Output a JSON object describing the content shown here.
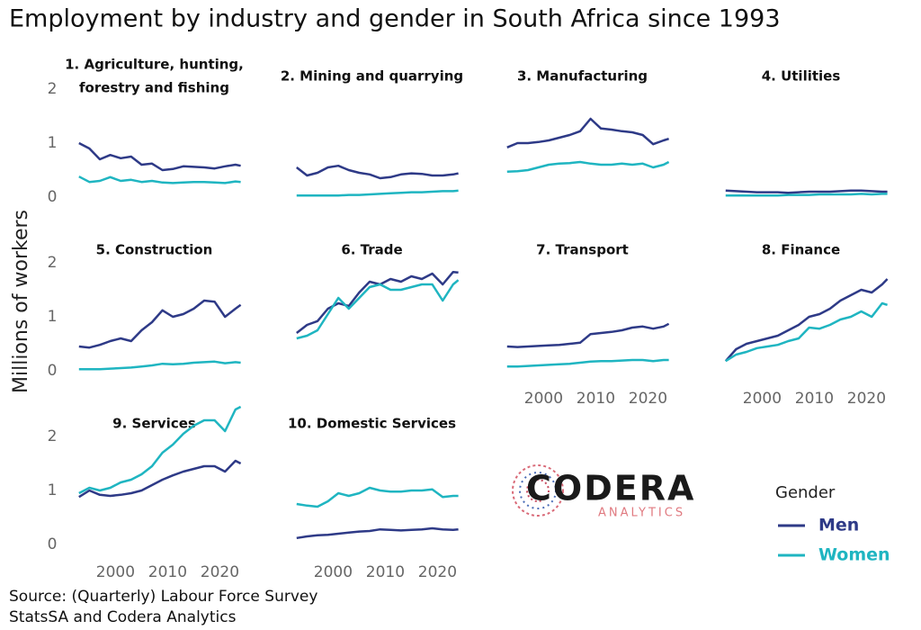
{
  "title": "Employment by industry and gender in South Africa since 1993",
  "y_label": "Millions of workers",
  "source": [
    "Source: (Quarterly) Labour Force Survey",
    "StatsSA and Codera Analytics"
  ],
  "legend": {
    "title": "Gender"
  },
  "logo": {
    "name": "CODERA",
    "sub": "ANALYTICS"
  },
  "chart_data": [
    {
      "type": "line",
      "title": [
        "1. Agriculture, hunting,",
        "forestry and fishing"
      ],
      "xlim": [
        1992,
        2027
      ],
      "ylim": [
        -0.1,
        2.6
      ],
      "yticks": [
        0,
        1,
        2
      ],
      "x": [
        1993,
        1995,
        1997,
        1999,
        2001,
        2003,
        2005,
        2007,
        2009,
        2011,
        2013,
        2015,
        2017,
        2019,
        2021,
        2023,
        2024
      ],
      "series": [
        {
          "name": "Men",
          "color": "#2e3a87",
          "values": [
            1.0,
            0.9,
            0.7,
            0.78,
            0.72,
            0.75,
            0.6,
            0.62,
            0.5,
            0.52,
            0.57,
            0.56,
            0.55,
            0.53,
            0.57,
            0.6,
            0.58
          ]
        },
        {
          "name": "Women",
          "color": "#1fb5c1",
          "values": [
            0.38,
            0.28,
            0.3,
            0.37,
            0.3,
            0.32,
            0.28,
            0.3,
            0.27,
            0.26,
            0.27,
            0.28,
            0.28,
            0.27,
            0.26,
            0.29,
            0.28
          ]
        }
      ]
    },
    {
      "type": "line",
      "title": [
        "2. Mining and quarrying"
      ],
      "xlim": [
        1992,
        2027
      ],
      "ylim": [
        -0.1,
        2.6
      ],
      "x": [
        1993,
        1995,
        1997,
        1999,
        2001,
        2003,
        2005,
        2007,
        2009,
        2011,
        2013,
        2015,
        2017,
        2019,
        2021,
        2023,
        2024
      ],
      "series": [
        {
          "name": "Men",
          "color": "#2e3a87",
          "values": [
            0.55,
            0.4,
            0.45,
            0.55,
            0.58,
            0.5,
            0.45,
            0.42,
            0.35,
            0.37,
            0.42,
            0.44,
            0.43,
            0.4,
            0.4,
            0.42,
            0.44
          ]
        },
        {
          "name": "Women",
          "color": "#1fb5c1",
          "values": [
            0.03,
            0.03,
            0.03,
            0.03,
            0.03,
            0.04,
            0.04,
            0.05,
            0.06,
            0.07,
            0.08,
            0.09,
            0.09,
            0.1,
            0.11,
            0.11,
            0.12
          ]
        }
      ]
    },
    {
      "type": "line",
      "title": [
        "3. Manufacturing"
      ],
      "xlim": [
        1992,
        2027
      ],
      "ylim": [
        -0.1,
        2.6
      ],
      "x": [
        1993,
        1995,
        1997,
        1999,
        2001,
        2003,
        2005,
        2007,
        2009,
        2011,
        2013,
        2015,
        2017,
        2019,
        2021,
        2023,
        2024
      ],
      "series": [
        {
          "name": "Men",
          "color": "#2e3a87",
          "values": [
            0.92,
            1.0,
            1.0,
            1.02,
            1.05,
            1.1,
            1.15,
            1.22,
            1.45,
            1.27,
            1.25,
            1.22,
            1.2,
            1.15,
            0.98,
            1.05,
            1.08
          ]
        },
        {
          "name": "Women",
          "color": "#1fb5c1",
          "values": [
            0.47,
            0.48,
            0.5,
            0.55,
            0.6,
            0.62,
            0.63,
            0.65,
            0.62,
            0.6,
            0.6,
            0.62,
            0.6,
            0.62,
            0.55,
            0.6,
            0.65
          ]
        }
      ]
    },
    {
      "type": "line",
      "title": [
        "4. Utilities"
      ],
      "xlim": [
        1992,
        2027
      ],
      "ylim": [
        -0.1,
        2.6
      ],
      "x": [
        1993,
        1995,
        1997,
        1999,
        2001,
        2003,
        2005,
        2007,
        2009,
        2011,
        2013,
        2015,
        2017,
        2019,
        2021,
        2023,
        2024
      ],
      "series": [
        {
          "name": "Men",
          "color": "#2e3a87",
          "values": [
            0.12,
            0.11,
            0.1,
            0.09,
            0.09,
            0.09,
            0.08,
            0.09,
            0.1,
            0.1,
            0.1,
            0.11,
            0.12,
            0.12,
            0.11,
            0.1,
            0.1
          ]
        },
        {
          "name": "Women",
          "color": "#1fb5c1",
          "values": [
            0.03,
            0.03,
            0.03,
            0.03,
            0.03,
            0.03,
            0.04,
            0.04,
            0.04,
            0.05,
            0.05,
            0.05,
            0.05,
            0.06,
            0.05,
            0.06,
            0.06
          ]
        }
      ]
    },
    {
      "type": "line",
      "title": [
        "5. Construction"
      ],
      "xlim": [
        1992,
        2027
      ],
      "ylim": [
        -0.1,
        2.6
      ],
      "yticks": [
        0,
        1,
        2
      ],
      "x": [
        1993,
        1995,
        1997,
        1999,
        2001,
        2003,
        2005,
        2007,
        2009,
        2011,
        2013,
        2015,
        2017,
        2019,
        2021,
        2023,
        2024
      ],
      "series": [
        {
          "name": "Men",
          "color": "#2e3a87",
          "values": [
            0.45,
            0.43,
            0.48,
            0.55,
            0.6,
            0.55,
            0.75,
            0.9,
            1.12,
            1.0,
            1.05,
            1.15,
            1.3,
            1.28,
            1.0,
            1.15,
            1.22
          ]
        },
        {
          "name": "Women",
          "color": "#1fb5c1",
          "values": [
            0.03,
            0.03,
            0.03,
            0.04,
            0.05,
            0.06,
            0.08,
            0.1,
            0.13,
            0.12,
            0.13,
            0.15,
            0.16,
            0.17,
            0.14,
            0.16,
            0.15
          ]
        }
      ]
    },
    {
      "type": "line",
      "title": [
        "6. Trade"
      ],
      "xlim": [
        1992,
        2027
      ],
      "ylim": [
        -0.1,
        2.6
      ],
      "x": [
        1993,
        1995,
        1997,
        1999,
        2001,
        2003,
        2005,
        2007,
        2009,
        2011,
        2013,
        2015,
        2017,
        2019,
        2021,
        2023,
        2024
      ],
      "series": [
        {
          "name": "Men",
          "color": "#2e3a87",
          "values": [
            0.7,
            0.85,
            0.92,
            1.15,
            1.25,
            1.2,
            1.45,
            1.65,
            1.6,
            1.7,
            1.65,
            1.75,
            1.7,
            1.8,
            1.6,
            1.83,
            1.82
          ]
        },
        {
          "name": "Women",
          "color": "#1fb5c1",
          "values": [
            0.6,
            0.65,
            0.75,
            1.05,
            1.35,
            1.15,
            1.35,
            1.55,
            1.6,
            1.5,
            1.5,
            1.55,
            1.6,
            1.6,
            1.3,
            1.6,
            1.68
          ]
        }
      ]
    },
    {
      "type": "line",
      "title": [
        "7. Transport"
      ],
      "xlim": [
        1992,
        2027
      ],
      "ylim": [
        -0.1,
        2.6
      ],
      "xticks": [
        2000,
        2010,
        2020
      ],
      "x": [
        1993,
        1995,
        1997,
        1999,
        2001,
        2003,
        2005,
        2007,
        2009,
        2011,
        2013,
        2015,
        2017,
        2019,
        2021,
        2023,
        2024
      ],
      "series": [
        {
          "name": "Men",
          "color": "#2e3a87",
          "values": [
            0.45,
            0.44,
            0.45,
            0.46,
            0.47,
            0.48,
            0.5,
            0.52,
            0.68,
            0.7,
            0.72,
            0.75,
            0.8,
            0.82,
            0.78,
            0.82,
            0.87
          ]
        },
        {
          "name": "Women",
          "color": "#1fb5c1",
          "values": [
            0.08,
            0.08,
            0.09,
            0.1,
            0.11,
            0.12,
            0.13,
            0.15,
            0.17,
            0.18,
            0.18,
            0.19,
            0.2,
            0.2,
            0.18,
            0.2,
            0.2
          ]
        }
      ]
    },
    {
      "type": "line",
      "title": [
        "8. Finance"
      ],
      "xlim": [
        1992,
        2027
      ],
      "ylim": [
        -0.1,
        2.6
      ],
      "xticks": [
        2000,
        2010,
        2020
      ],
      "x": [
        1993,
        1995,
        1997,
        1999,
        2001,
        2003,
        2005,
        2007,
        2009,
        2011,
        2013,
        2015,
        2017,
        2019,
        2021,
        2023,
        2024
      ],
      "series": [
        {
          "name": "Men",
          "color": "#2e3a87",
          "values": [
            0.18,
            0.4,
            0.5,
            0.55,
            0.6,
            0.65,
            0.75,
            0.85,
            1.0,
            1.05,
            1.15,
            1.3,
            1.4,
            1.5,
            1.45,
            1.6,
            1.7
          ]
        },
        {
          "name": "Women",
          "color": "#1fb5c1",
          "values": [
            0.18,
            0.3,
            0.35,
            0.42,
            0.45,
            0.48,
            0.55,
            0.6,
            0.8,
            0.78,
            0.85,
            0.95,
            1.0,
            1.1,
            1.0,
            1.25,
            1.22
          ]
        }
      ]
    },
    {
      "type": "line",
      "title": [
        "9. Services"
      ],
      "xlim": [
        1992,
        2027
      ],
      "ylim": [
        -0.1,
        2.6
      ],
      "yticks": [
        0,
        1,
        2
      ],
      "xticks": [
        2000,
        2010,
        2020
      ],
      "x": [
        1993,
        1995,
        1997,
        1999,
        2001,
        2003,
        2005,
        2007,
        2009,
        2011,
        2013,
        2015,
        2017,
        2019,
        2021,
        2023,
        2024
      ],
      "series": [
        {
          "name": "Men",
          "color": "#2e3a87",
          "values": [
            0.88,
            1.0,
            0.92,
            0.9,
            0.92,
            0.95,
            1.0,
            1.1,
            1.2,
            1.28,
            1.35,
            1.4,
            1.45,
            1.45,
            1.35,
            1.55,
            1.5
          ]
        },
        {
          "name": "Women",
          "color": "#1fb5c1",
          "values": [
            0.95,
            1.05,
            1.0,
            1.05,
            1.15,
            1.2,
            1.3,
            1.45,
            1.7,
            1.85,
            2.05,
            2.2,
            2.3,
            2.3,
            2.1,
            2.5,
            2.55
          ]
        }
      ]
    },
    {
      "type": "line",
      "title": [
        "10. Domestic Services"
      ],
      "xlim": [
        1992,
        2027
      ],
      "ylim": [
        -0.1,
        2.6
      ],
      "xticks": [
        2000,
        2010,
        2020
      ],
      "x": [
        1993,
        1995,
        1997,
        1999,
        2001,
        2003,
        2005,
        2007,
        2009,
        2011,
        2013,
        2015,
        2017,
        2019,
        2021,
        2023,
        2024
      ],
      "series": [
        {
          "name": "Men",
          "color": "#2e3a87",
          "values": [
            0.12,
            0.15,
            0.17,
            0.18,
            0.2,
            0.22,
            0.24,
            0.25,
            0.28,
            0.27,
            0.26,
            0.27,
            0.28,
            0.3,
            0.28,
            0.27,
            0.28
          ]
        },
        {
          "name": "Women",
          "color": "#1fb5c1",
          "values": [
            0.75,
            0.72,
            0.7,
            0.8,
            0.95,
            0.9,
            0.95,
            1.05,
            1.0,
            0.98,
            0.98,
            1.0,
            1.0,
            1.02,
            0.88,
            0.9,
            0.9
          ]
        }
      ]
    }
  ]
}
